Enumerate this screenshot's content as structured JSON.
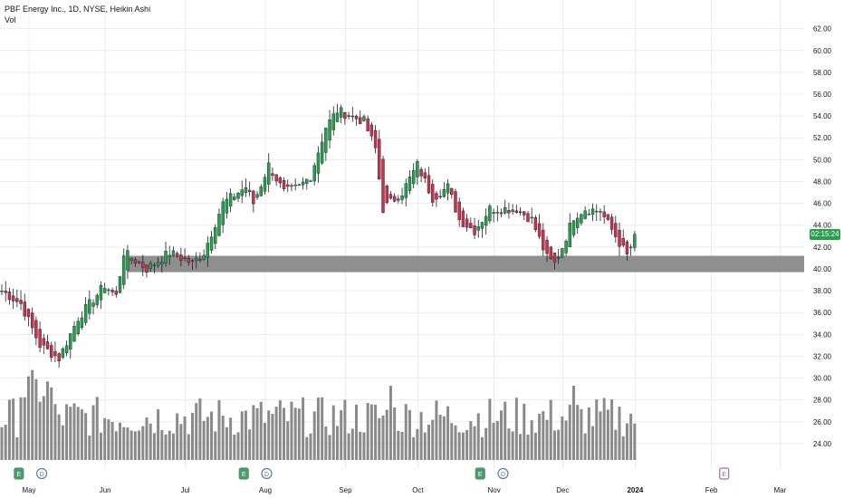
{
  "header": {
    "title": "PBF Energy Inc., 1D, NYSE, Heikin Ashi",
    "volume_label": "Vol"
  },
  "last_price_tag": "02:15:24",
  "colors": {
    "up": "#26a04a",
    "down": "#c8334a",
    "wick": "#1b1f2a",
    "volume": "#8a8a8a",
    "zone": "#8f8f8f",
    "grid": "#e9ecf2",
    "tag": "#26a04a",
    "event_earnings": "#4a9a6b",
    "event_dividend": "#5a7ab8",
    "event_future": "#a66aa8"
  },
  "chart_data": {
    "type": "candlestick",
    "ylim": [
      22.5,
      62.8
    ],
    "yticks": [
      "62.00",
      "60.00",
      "58.00",
      "56.00",
      "54.00",
      "52.00",
      "50.00",
      "48.00",
      "46.00",
      "44.00",
      "42.00",
      "40.00",
      "38.00",
      "36.00",
      "34.00",
      "32.00",
      "30.00",
      "28.00",
      "26.00",
      "24.00"
    ],
    "xticks": [
      "May",
      "Jun",
      "Jul",
      "Aug",
      "Sep",
      "Oct",
      "Nov",
      "Dec",
      "2024",
      "Feb",
      "Mar"
    ],
    "support_zone": {
      "low": 39.7,
      "high": 41.2
    },
    "events": [
      {
        "label": "E",
        "kind": "earnings",
        "day": 4
      },
      {
        "label": "D",
        "kind": "dividend",
        "day": 10
      },
      {
        "label": "E",
        "kind": "earnings",
        "day": 63
      },
      {
        "label": "D",
        "kind": "dividend",
        "day": 69
      },
      {
        "label": "E",
        "kind": "earnings",
        "day": 125
      },
      {
        "label": "D",
        "kind": "dividend",
        "day": 131
      },
      {
        "label": "E",
        "kind": "future",
        "day": 189
      }
    ],
    "keypoints": [
      [
        0,
        38.0
      ],
      [
        5,
        36.8
      ],
      [
        10,
        33.0
      ],
      [
        15,
        31.8
      ],
      [
        20,
        35.5
      ],
      [
        27,
        38.5
      ],
      [
        30,
        37.5
      ],
      [
        32,
        41.5
      ],
      [
        38,
        40.0
      ],
      [
        44,
        41.5
      ],
      [
        50,
        40.5
      ],
      [
        53,
        41.5
      ],
      [
        58,
        46.0
      ],
      [
        64,
        47.5
      ],
      [
        66,
        46.0
      ],
      [
        70,
        49.5
      ],
      [
        74,
        47.0
      ],
      [
        78,
        47.5
      ],
      [
        81,
        48.5
      ],
      [
        85,
        53.0
      ],
      [
        88,
        54.5
      ],
      [
        95,
        53.5
      ],
      [
        98,
        51.0
      ],
      [
        100,
        45.5
      ],
      [
        105,
        47.0
      ],
      [
        109,
        49.5
      ],
      [
        113,
        46.5
      ],
      [
        117,
        47.5
      ],
      [
        120,
        44.5
      ],
      [
        124,
        43.5
      ],
      [
        128,
        45.5
      ],
      [
        135,
        45.5
      ],
      [
        139,
        44.5
      ],
      [
        143,
        41.0
      ],
      [
        145,
        40.5
      ],
      [
        147,
        42.0
      ],
      [
        150,
        44.8
      ],
      [
        153,
        45.5
      ],
      [
        157,
        45.3
      ],
      [
        161,
        43.0
      ],
      [
        164,
        41.2
      ],
      [
        166,
        42.8
      ]
    ]
  }
}
